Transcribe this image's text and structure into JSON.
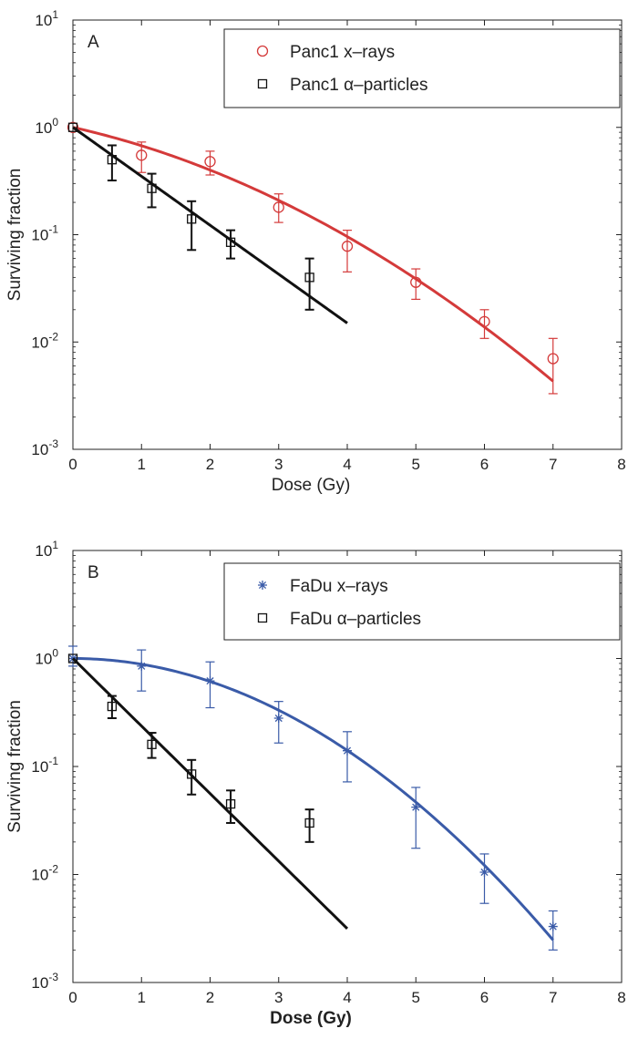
{
  "chart_data": [
    {
      "type": "scatter",
      "panel_label": "A",
      "xlabel": "Dose (Gy)",
      "ylabel": "Surviving fraction",
      "xlim": [
        0,
        8
      ],
      "ylim": [
        0.001,
        10
      ],
      "yscale": "log",
      "x_ticks": [
        "0",
        "1",
        "2",
        "3",
        "4",
        "5",
        "6",
        "7",
        "8"
      ],
      "y_ticks": [
        {
          "value": 10,
          "base": "10",
          "exp": "1"
        },
        {
          "value": 1,
          "base": "10",
          "exp": "0"
        },
        {
          "value": 0.1,
          "base": "10",
          "exp": "-1"
        },
        {
          "value": 0.01,
          "base": "10",
          "exp": "-2"
        },
        {
          "value": 0.001,
          "base": "10",
          "exp": "-3"
        }
      ],
      "legend_position": "top-right",
      "series": [
        {
          "name": "Panc1 x–rays",
          "marker": "circle",
          "color": "#d43a3a",
          "points": [
            {
              "x": 0,
              "y": 1.0,
              "lo": 1.0,
              "hi": 1.0
            },
            {
              "x": 1,
              "y": 0.55,
              "lo": 0.38,
              "hi": 0.73
            },
            {
              "x": 2,
              "y": 0.48,
              "lo": 0.36,
              "hi": 0.6
            },
            {
              "x": 3,
              "y": 0.18,
              "lo": 0.13,
              "hi": 0.24
            },
            {
              "x": 4,
              "y": 0.078,
              "lo": 0.045,
              "hi": 0.11
            },
            {
              "x": 5,
              "y": 0.036,
              "lo": 0.025,
              "hi": 0.048
            },
            {
              "x": 6,
              "y": 0.0155,
              "lo": 0.0108,
              "hi": 0.02
            },
            {
              "x": 7,
              "y": 0.007,
              "lo": 0.0033,
              "hi": 0.0108
            }
          ],
          "fit": {
            "model": "linear-quadratic",
            "alpha": 0.33,
            "beta": 0.064,
            "x_range": [
              0,
              7
            ]
          }
        },
        {
          "name": "Panc1 α–particles",
          "marker": "square",
          "color": "#111111",
          "points": [
            {
              "x": 0,
              "y": 1.0,
              "lo": 1.0,
              "hi": 1.0
            },
            {
              "x": 0.57,
              "y": 0.5,
              "lo": 0.32,
              "hi": 0.68
            },
            {
              "x": 1.15,
              "y": 0.27,
              "lo": 0.18,
              "hi": 0.37
            },
            {
              "x": 1.73,
              "y": 0.14,
              "lo": 0.072,
              "hi": 0.205
            },
            {
              "x": 2.3,
              "y": 0.085,
              "lo": 0.06,
              "hi": 0.11
            },
            {
              "x": 3.45,
              "y": 0.04,
              "lo": 0.02,
              "hi": 0.06
            }
          ],
          "fit": {
            "model": "exponential",
            "alpha": 1.05,
            "beta": 0,
            "x_range": [
              0,
              4
            ]
          }
        }
      ]
    },
    {
      "type": "scatter",
      "panel_label": "B",
      "xlabel": "Dose (Gy)",
      "ylabel": "Surviving fraction",
      "xlim": [
        0,
        8
      ],
      "ylim": [
        0.001,
        10
      ],
      "yscale": "log",
      "x_ticks": [
        "0",
        "1",
        "2",
        "3",
        "4",
        "5",
        "6",
        "7",
        "8"
      ],
      "y_ticks": [
        {
          "value": 10,
          "base": "10",
          "exp": "1"
        },
        {
          "value": 1,
          "base": "10",
          "exp": "0"
        },
        {
          "value": 0.1,
          "base": "10",
          "exp": "-1"
        },
        {
          "value": 0.01,
          "base": "10",
          "exp": "-2"
        },
        {
          "value": 0.001,
          "base": "10",
          "exp": "-3"
        }
      ],
      "legend_position": "top-right",
      "series": [
        {
          "name": "FaDu x–rays",
          "marker": "asterisk",
          "color": "#3a5ba8",
          "points": [
            {
              "x": 0,
              "y": 1.0,
              "lo": 0.85,
              "hi": 1.3
            },
            {
              "x": 1,
              "y": 0.85,
              "lo": 0.5,
              "hi": 1.2
            },
            {
              "x": 2,
              "y": 0.62,
              "lo": 0.35,
              "hi": 0.93
            },
            {
              "x": 3,
              "y": 0.28,
              "lo": 0.165,
              "hi": 0.4
            },
            {
              "x": 4,
              "y": 0.14,
              "lo": 0.072,
              "hi": 0.21
            },
            {
              "x": 5,
              "y": 0.042,
              "lo": 0.0175,
              "hi": 0.064
            },
            {
              "x": 6,
              "y": 0.0105,
              "lo": 0.0054,
              "hi": 0.0155
            },
            {
              "x": 7,
              "y": 0.0033,
              "lo": 0.002,
              "hi": 0.0046
            }
          ],
          "fit": {
            "model": "linear-quadratic",
            "alpha": 0.0,
            "beta": 0.1225,
            "x_range": [
              0,
              7
            ]
          }
        },
        {
          "name": "FaDu α–particles",
          "marker": "square",
          "color": "#111111",
          "points": [
            {
              "x": 0,
              "y": 1.0,
              "lo": 1.0,
              "hi": 1.0
            },
            {
              "x": 0.57,
              "y": 0.36,
              "lo": 0.28,
              "hi": 0.45
            },
            {
              "x": 1.15,
              "y": 0.16,
              "lo": 0.12,
              "hi": 0.205
            },
            {
              "x": 1.73,
              "y": 0.085,
              "lo": 0.055,
              "hi": 0.115
            },
            {
              "x": 2.3,
              "y": 0.045,
              "lo": 0.03,
              "hi": 0.06
            },
            {
              "x": 3.45,
              "y": 0.03,
              "lo": 0.02,
              "hi": 0.04
            }
          ],
          "fit": {
            "model": "exponential",
            "alpha": 1.44,
            "beta": 0,
            "x_range": [
              0,
              4
            ]
          }
        }
      ]
    }
  ]
}
